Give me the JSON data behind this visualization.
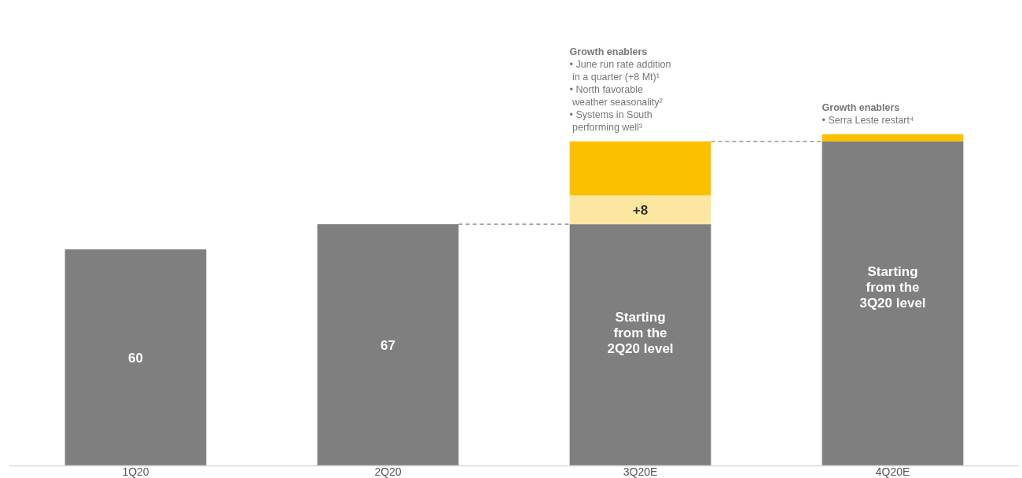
{
  "chart_data": {
    "type": "bar",
    "stacked": true,
    "categories": [
      "1Q20",
      "2Q20",
      "3Q20E",
      "4Q20E"
    ],
    "series": [
      {
        "color": "#7f7f7f",
        "values": [
          60,
          67,
          67,
          90
        ],
        "value_labels": [
          "60",
          "67",
          null,
          null
        ]
      },
      {
        "color": "#fce7a0",
        "values": [
          0,
          0,
          8,
          0
        ],
        "value_labels": [
          null,
          null,
          "+8",
          null
        ]
      },
      {
        "color": "#fbc000",
        "values": [
          0,
          0,
          15,
          2
        ]
      }
    ],
    "tick_labels": "x",
    "ref_lines": [
      {
        "axis": "y",
        "value": 67,
        "line_style": "dashed",
        "color": "#808080"
      },
      {
        "axis": "y",
        "value": 90,
        "line_style": "dashed",
        "color": "#808080"
      }
    ],
    "annotations": [
      "Starting\nfrom the\n2Q20 level",
      "Starting\nfrom the\n3Q20 level",
      {
        "text": "Growth enablers\n•  June run rate addition\n    in a quarter (+8 Mt)¹\n•  North favorable\n    weather seasonality²\n•  Systems in South\n    performing well³",
        "x": "3Q20E",
        "y": 90
      },
      {
        "text": "Growth enablers\n•  Serra Leste restart⁴",
        "x": "4Q20E",
        "y": 92
      }
    ]
  }
}
